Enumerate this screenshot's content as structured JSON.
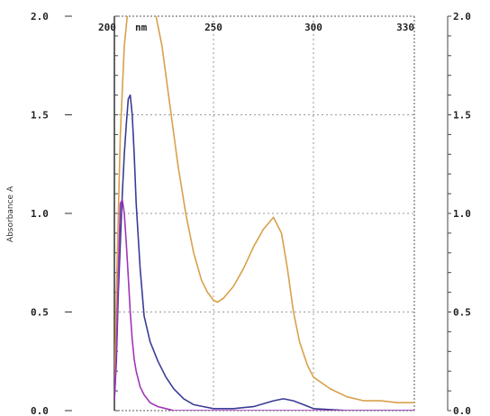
{
  "chart_data": [
    {
      "type": "line",
      "title": "",
      "xlabel": "",
      "ylabel": "Absorbance A",
      "x_unit_label": "nm",
      "xlim": [
        200,
        330
      ],
      "ylim": [
        0.0,
        2.0
      ],
      "grid": true,
      "legend": "none",
      "x_ticks": [
        {
          "value": 200,
          "label": "200"
        },
        {
          "value": 250,
          "label": "250"
        },
        {
          "value": 300,
          "label": "300"
        },
        {
          "value": 330,
          "label": "330"
        }
      ],
      "y_ticks": [
        {
          "value": 0.0,
          "label": "0.0"
        },
        {
          "value": 0.5,
          "label": "0.5"
        },
        {
          "value": 1.0,
          "label": "1.0"
        },
        {
          "value": 1.5,
          "label": "1.5"
        },
        {
          "value": 2.0,
          "label": "2.0"
        }
      ],
      "series": [
        {
          "color": "#d9a04a",
          "x": [
            200,
            201,
            203,
            205,
            207,
            209,
            211,
            213,
            215,
            217,
            220,
            224,
            228,
            232,
            236,
            240,
            244,
            247,
            250,
            252,
            255,
            260,
            265,
            270,
            275,
            280,
            284,
            287,
            290,
            293,
            297,
            300,
            305,
            310,
            315,
            320,
            325,
            330
          ],
          "y": [
            0.05,
            0.6,
            1.4,
            1.85,
            2.05,
            2.1,
            2.1,
            2.1,
            2.1,
            2.1,
            2.05,
            1.85,
            1.55,
            1.25,
            1.0,
            0.8,
            0.66,
            0.6,
            0.56,
            0.55,
            0.57,
            0.63,
            0.72,
            0.83,
            0.92,
            0.98,
            0.9,
            0.72,
            0.5,
            0.35,
            0.23,
            0.17,
            0.11,
            0.07,
            0.05,
            0.05,
            0.04,
            0.04
          ]
        },
        {
          "color": "#3a3c96",
          "x": [
            200,
            201,
            202,
            204,
            205,
            206,
            207,
            208,
            209,
            210,
            211,
            213,
            215,
            218,
            222,
            226,
            230,
            235,
            240,
            245,
            250,
            260,
            270,
            280,
            285,
            290,
            295,
            300,
            310,
            320,
            330
          ],
          "y": [
            0.05,
            0.25,
            0.6,
            1.1,
            1.3,
            1.45,
            1.58,
            1.6,
            1.5,
            1.3,
            1.05,
            0.72,
            0.48,
            0.35,
            0.25,
            0.17,
            0.11,
            0.06,
            0.03,
            0.02,
            0.01,
            0.01,
            0.02,
            0.05,
            0.06,
            0.05,
            0.03,
            0.01,
            0.0,
            0.0,
            0.0
          ]
        },
        {
          "color": "#a035b8",
          "x": [
            200,
            201,
            202,
            203,
            204,
            205,
            206,
            207,
            208,
            209,
            210,
            211,
            213,
            215,
            218,
            222,
            226,
            230,
            235,
            240,
            250,
            330
          ],
          "y": [
            0.05,
            0.3,
            0.7,
            1.05,
            1.07,
            1.0,
            0.85,
            0.68,
            0.5,
            0.36,
            0.26,
            0.2,
            0.12,
            0.08,
            0.04,
            0.02,
            0.01,
            0.0,
            0.0,
            0.0,
            0.0,
            0.0
          ]
        }
      ]
    },
    {
      "type": "line",
      "partial": true,
      "y_ticks": [
        {
          "value": 0.0,
          "label": "0.0"
        },
        {
          "value": 0.5,
          "label": "0.5"
        },
        {
          "value": 1.0,
          "label": "1.0"
        },
        {
          "value": 1.5,
          "label": "1.5"
        },
        {
          "value": 2.0,
          "label": "2.0"
        }
      ]
    }
  ]
}
